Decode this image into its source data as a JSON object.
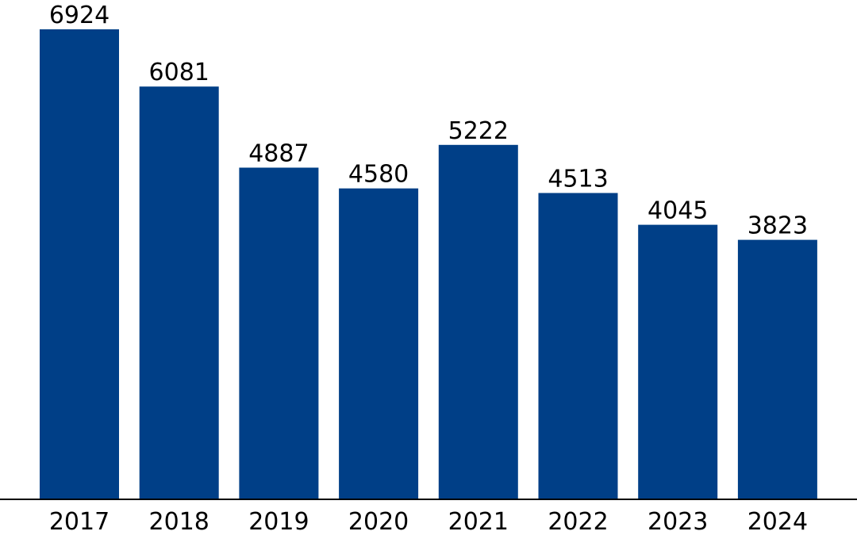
{
  "chart_data": {
    "type": "bar",
    "categories": [
      "2017",
      "2018",
      "2019",
      "2020",
      "2021",
      "2022",
      "2023",
      "2024"
    ],
    "values": [
      6924,
      6081,
      4887,
      4580,
      5222,
      4513,
      4045,
      3823
    ],
    "title": "",
    "xlabel": "",
    "ylabel": "",
    "ylim": [
      0,
      6924
    ],
    "grid": false,
    "legend": "none",
    "bar_color": "#003f87",
    "highlight_category": "2024",
    "highlight_label_color": "#ff0000",
    "default_label_color": "#000000",
    "axis_color": "#000000"
  }
}
